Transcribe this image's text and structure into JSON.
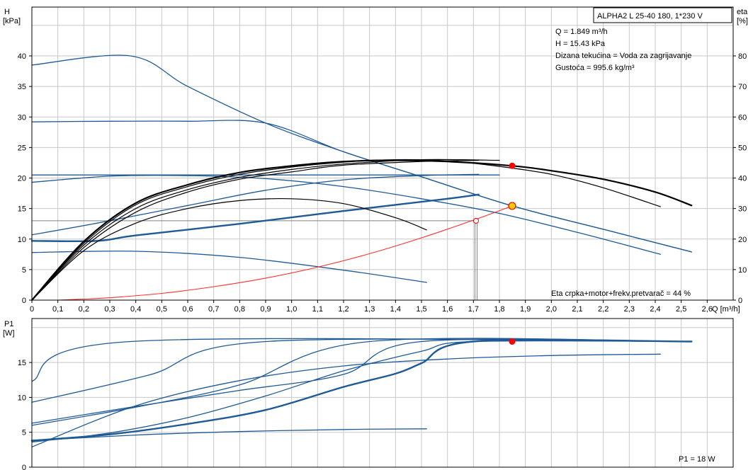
{
  "colors": {
    "grid": "#c8c8c8",
    "axis": "#000000",
    "blue": "#1f5a96",
    "black": "#000000",
    "red_curve": "#ff3030",
    "gray_line": "#808080",
    "op_red": "#ff0000",
    "op_yellow": "#ffcc00"
  },
  "top_chart": {
    "y_axis_label_line1": "H",
    "y_axis_label_line2": "[kPa]",
    "right_axis_label_line1": "eta",
    "right_axis_label_line2": "[%]",
    "x_axis_label": "Q [m³/h]",
    "title_box": "ALPHA2 L 25-40 180, 1*230 V",
    "info_lines": [
      "Q = 1.849 m³/h",
      "H = 15.43 kPa",
      "Dizana tekućina = Voda za zagrijavanje",
      "Gustoća = 995.6 kg/m³"
    ],
    "efficiency_note": "Eta crpka+motor+frekv.pretvarač = 44 %",
    "x_ticks": [
      "0",
      "0,1",
      "0,2",
      "0,3",
      "0,4",
      "0,5",
      "0,6",
      "0,7",
      "0,8",
      "0,9",
      "1,0",
      "1,1",
      "1,2",
      "1,3",
      "1,4",
      "1,5",
      "1,6",
      "1,7",
      "1,8",
      "1,9",
      "2,0",
      "2,1",
      "2,2",
      "2,3",
      "2,4",
      "2,5",
      "2,6"
    ],
    "y_ticks": [
      "0",
      "5",
      "10",
      "15",
      "20",
      "25",
      "30",
      "35",
      "40"
    ],
    "eta_ticks": [
      "0",
      "10",
      "20",
      "30",
      "40",
      "50",
      "60",
      "70",
      "80"
    ]
  },
  "bottom_chart": {
    "y_axis_label_line1": "P1",
    "y_axis_label_line2": "[W]",
    "y_ticks": [
      "0",
      "5",
      "10",
      "15"
    ],
    "power_note": "P1 = 18 W"
  },
  "chart_data": [
    {
      "type": "line",
      "xlabel": "Q [m³/h]",
      "ylabel": "H [kPa]",
      "y2label": "eta [%]",
      "title": "ALPHA2 L 25-40 180, 1*230 V",
      "xlim": [
        0,
        2.7
      ],
      "ylim": [
        0,
        48
      ],
      "y2lim": [
        0,
        96
      ],
      "grid": true,
      "series": [
        {
          "role": "head",
          "style": "blue",
          "x": [
            0,
            0.38,
            0.6,
            0.9,
            1.2,
            1.5,
            1.85,
            2.2,
            2.54
          ],
          "y": [
            38.5,
            40,
            35,
            29,
            24.3,
            20.2,
            15.43,
            11.6,
            7.9
          ]
        },
        {
          "role": "head",
          "style": "blue",
          "x": [
            0,
            0.3,
            0.6,
            0.9,
            1.2,
            1.5,
            1.85,
            2.2,
            2.54
          ],
          "y": [
            29.2,
            29.3,
            29.3,
            29,
            24.3,
            20.2,
            15.43,
            11.6,
            7.9
          ]
        },
        {
          "role": "head",
          "style": "blue",
          "x": [
            0,
            0.5,
            1.0,
            1.5,
            1.8
          ],
          "y": [
            20.5,
            20.5,
            20.5,
            20.5,
            20.5
          ]
        },
        {
          "role": "head",
          "style": "blue",
          "x": [
            0,
            0.3,
            0.6,
            0.9,
            1.2,
            1.5,
            1.8,
            2.1,
            2.42
          ],
          "y": [
            19.3,
            20.3,
            20.4,
            19.9,
            18.6,
            16.6,
            14.2,
            11.1,
            7.5
          ]
        },
        {
          "role": "head",
          "style": "blue",
          "x": [
            0,
            0.4,
            0.8,
            1.2,
            1.52
          ],
          "y": [
            7.8,
            8.0,
            7.0,
            4.9,
            2.9
          ]
        },
        {
          "role": "head",
          "style": "blue",
          "x": [
            0,
            0.25,
            0.6,
            0.9,
            1.2,
            1.5,
            1.72
          ],
          "y": [
            10.7,
            12.6,
            15.5,
            18.0,
            19.7,
            20.4,
            20.6
          ]
        },
        {
          "role": "head",
          "style": "blue-bold",
          "x": [
            0,
            0.25,
            0.4,
            0.8,
            1.2,
            1.6,
            1.72
          ],
          "y": [
            9.7,
            9.7,
            10.6,
            12.5,
            14.6,
            16.6,
            17.3
          ]
        },
        {
          "role": "system_curve",
          "style": "red",
          "x": [
            0.1,
            0.2,
            0.3,
            0.5,
            0.7,
            0.9,
            1.1,
            1.3,
            1.5,
            1.7,
            1.849
          ],
          "y": [
            0,
            0.17,
            0.4,
            1.1,
            2.2,
            3.6,
            5.4,
            7.6,
            10.2,
            13.1,
            15.43
          ]
        },
        {
          "role": "eta",
          "style": "black-bold",
          "x": [
            0,
            0.2,
            0.4,
            0.6,
            0.8,
            1.0,
            1.2,
            1.4,
            1.6,
            1.85,
            2.0,
            2.2,
            2.4,
            2.54
          ],
          "y": [
            0,
            9.6,
            15.9,
            18.9,
            20.9,
            22.0,
            22.7,
            22.9,
            22.7,
            22.0,
            21.2,
            19.8,
            17.7,
            15.5
          ]
        },
        {
          "role": "eta",
          "style": "black",
          "x": [
            0,
            0.2,
            0.4,
            0.6,
            0.8,
            1.0,
            1.2,
            1.4,
            1.6,
            1.8,
            2.0,
            2.2,
            2.42
          ],
          "y": [
            0,
            9.3,
            15.6,
            18.6,
            20.6,
            21.8,
            22.6,
            23.0,
            22.8,
            21.9,
            20.6,
            18.4,
            15.3
          ]
        },
        {
          "role": "eta",
          "style": "black",
          "x": [
            0,
            0.2,
            0.4,
            0.6,
            0.8,
            1.0,
            1.2,
            1.4,
            1.52
          ],
          "y": [
            0,
            8.1,
            12.6,
            15.0,
            16.3,
            16.6,
            15.8,
            13.5,
            11.5
          ]
        },
        {
          "role": "eta",
          "style": "black",
          "x": [
            0,
            0.2,
            0.4,
            0.6,
            0.8,
            1.0,
            1.2,
            1.5,
            1.72
          ],
          "y": [
            0,
            8.6,
            14.4,
            17.7,
            19.8,
            21.0,
            22.1,
            22.7,
            22.9
          ]
        },
        {
          "role": "eta",
          "style": "black",
          "x": [
            0,
            0.2,
            0.4,
            0.6,
            0.8,
            1.0,
            1.2,
            1.5,
            1.8
          ],
          "y": [
            0,
            9.0,
            15.0,
            18.1,
            20.1,
            21.4,
            22.3,
            23.0,
            22.9
          ]
        }
      ],
      "operating_point": {
        "q": 1.849,
        "h": 15.43,
        "eta_y": 22.0
      },
      "reference_point": {
        "q": 1.71,
        "h": 13.0
      }
    },
    {
      "type": "line",
      "xlabel": "Q [m³/h]",
      "ylabel": "P1 [W]",
      "xlim": [
        0,
        2.7
      ],
      "ylim": [
        0,
        21.3
      ],
      "grid": true,
      "series": [
        {
          "style": "blue",
          "x": [
            0,
            0.38,
            2.54
          ],
          "y": [
            12.3,
            18,
            18
          ]
        },
        {
          "style": "blue",
          "x": [
            0,
            0.45,
            0.9,
            2.54
          ],
          "y": [
            9.3,
            13.2,
            18,
            18
          ]
        },
        {
          "style": "blue",
          "x": [
            0,
            0.4,
            0.8,
            1.3,
            2.54
          ],
          "y": [
            6.0,
            8.6,
            11.8,
            18,
            18
          ]
        },
        {
          "style": "blue",
          "x": [
            0,
            0.4,
            0.8,
            1.2,
            1.5,
            2.54
          ],
          "y": [
            6.3,
            8.7,
            11.0,
            13.3,
            18,
            18
          ]
        },
        {
          "style": "blue",
          "x": [
            0,
            0.3,
            0.6,
            0.9,
            1.2,
            1.5,
            1.7,
            2.54
          ],
          "y": [
            3.6,
            4.9,
            7.1,
            10.2,
            13.8,
            16.6,
            18,
            18
          ]
        },
        {
          "style": "blue-bold",
          "x": [
            0,
            0.3,
            0.6,
            0.9,
            1.2,
            1.4,
            1.5,
            1.7,
            2.54
          ],
          "y": [
            3.8,
            4.7,
            6.2,
            8.2,
            11.5,
            13.4,
            14.9,
            18,
            18
          ]
        },
        {
          "style": "blue",
          "x": [
            0,
            0.4,
            0.8,
            1.2,
            1.6,
            2.0,
            2.42
          ],
          "y": [
            2.9,
            8.8,
            12.4,
            14.5,
            15.5,
            16.0,
            16.2
          ]
        },
        {
          "style": "blue",
          "x": [
            0,
            0.4,
            0.8,
            1.2,
            1.52
          ],
          "y": [
            3.8,
            4.6,
            5.1,
            5.4,
            5.5
          ]
        }
      ],
      "operating_point": {
        "q": 1.849,
        "p1": 18
      }
    }
  ]
}
